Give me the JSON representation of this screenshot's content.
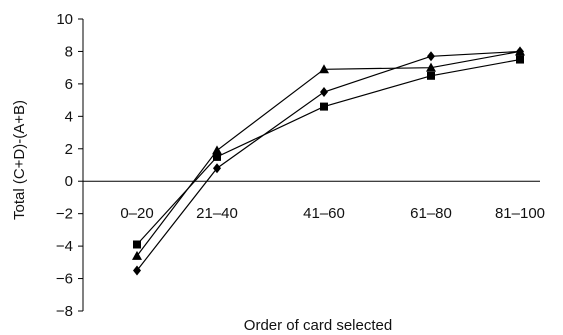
{
  "chart_data": {
    "type": "line",
    "categories": [
      "0–20",
      "21–40",
      "41–60",
      "61–80",
      "81–100"
    ],
    "xlabel": "Order of card selected",
    "ylabel": "Total (C+D)-(A+B)",
    "ylim": [
      -8,
      10
    ],
    "yticks": [
      -8,
      -6,
      -4,
      -2,
      0,
      2,
      4,
      6,
      8,
      10
    ],
    "grid": false,
    "series": [
      {
        "marker": "square",
        "values": [
          -3.9,
          1.5,
          4.6,
          6.5,
          7.5
        ]
      },
      {
        "marker": "triangle",
        "values": [
          -4.6,
          1.9,
          6.9,
          7.0,
          8.0
        ]
      },
      {
        "marker": "diamond",
        "values": [
          -5.5,
          0.8,
          5.5,
          7.7,
          8.0
        ]
      }
    ]
  }
}
